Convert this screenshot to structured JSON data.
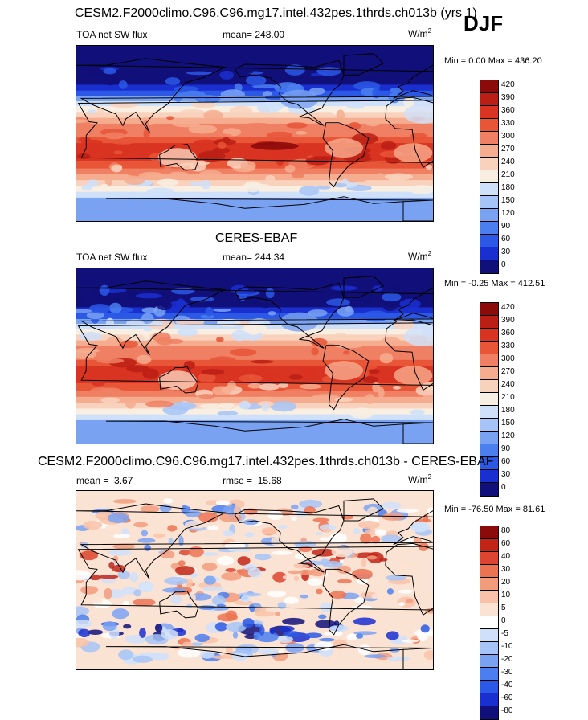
{
  "header": {
    "title": "CESM2.F2000climo.C96.C96.mg17.intel.432pes.1thrds.ch013b (yrs 1)",
    "season": "DJF"
  },
  "panels": [
    {
      "id": "test",
      "variable": "TOA net SW flux",
      "stat_label": "mean=",
      "stat_value": "248.00",
      "units": "W/m",
      "units_sup": "2",
      "range_text": "Min =   0.00 Max = 436.20",
      "levels": [
        "420",
        "390",
        "360",
        "330",
        "300",
        "270",
        "240",
        "210",
        "180",
        "150",
        "120",
        "90",
        "60",
        "30",
        "0"
      ]
    },
    {
      "id": "ref",
      "title": "CERES-EBAF",
      "variable": "TOA net SW flux",
      "stat_label": "mean=",
      "stat_value": "244.34",
      "units": "W/m",
      "units_sup": "2",
      "range_text": "Min =  -0.25 Max = 412.51",
      "levels": [
        "420",
        "390",
        "360",
        "330",
        "300",
        "270",
        "240",
        "210",
        "180",
        "150",
        "120",
        "90",
        "60",
        "30",
        "0"
      ]
    },
    {
      "id": "diff",
      "title": "CESM2.F2000climo.C96.C96.mg17.intel.432pes.1thrds.ch013b - CERES-EBAF",
      "stat_label": "mean =",
      "stat_value": "3.67",
      "rmse_label": "rmse =",
      "rmse_value": "15.68",
      "units": "W/m",
      "units_sup": "2",
      "range_text": "Min = -76.50 Max =  81.61",
      "levels": [
        "80",
        "60",
        "40",
        "30",
        "20",
        "10",
        "5",
        "0",
        "-5",
        "-10",
        "-20",
        "-30",
        "-40",
        "-60",
        "-80"
      ]
    }
  ],
  "chart_data": [
    {
      "type": "heatmap",
      "title": "CESM2.F2000climo.C96.C96.mg17.intel.432pes.1thrds.ch013b (yrs 1)",
      "subtitle": "TOA net SW flux",
      "season": "DJF",
      "mean": 248.0,
      "min": 0.0,
      "max": 436.2,
      "units": "W/m2",
      "colorbar_levels": [
        0,
        30,
        60,
        90,
        120,
        150,
        180,
        210,
        240,
        270,
        300,
        330,
        360,
        390,
        420
      ],
      "colorbar_colors": [
        "#110f79",
        "#1a2fd0",
        "#2c58e6",
        "#4b7ff0",
        "#7aa2f3",
        "#a6c4f7",
        "#cfe0fa",
        "#f8eee2",
        "#f9d2bd",
        "#f6ad8f",
        "#f08063",
        "#e85537",
        "#d93321",
        "#bb1e14",
        "#8b0a0a"
      ]
    },
    {
      "type": "heatmap",
      "title": "CERES-EBAF",
      "subtitle": "TOA net SW flux",
      "mean": 244.34,
      "min": -0.25,
      "max": 412.51,
      "units": "W/m2",
      "colorbar_levels": [
        0,
        30,
        60,
        90,
        120,
        150,
        180,
        210,
        240,
        270,
        300,
        330,
        360,
        390,
        420
      ],
      "colorbar_colors": [
        "#110f79",
        "#1a2fd0",
        "#2c58e6",
        "#4b7ff0",
        "#7aa2f3",
        "#a6c4f7",
        "#cfe0fa",
        "#f8eee2",
        "#f9d2bd",
        "#f6ad8f",
        "#f08063",
        "#e85537",
        "#d93321",
        "#bb1e14",
        "#8b0a0a"
      ]
    },
    {
      "type": "heatmap",
      "title": "CESM2.F2000climo.C96.C96.mg17.intel.432pes.1thrds.ch013b - CERES-EBAF",
      "mean": 3.67,
      "rmse": 15.68,
      "min": -76.5,
      "max": 81.61,
      "units": "W/m2",
      "colorbar_levels": [
        -80,
        -60,
        -40,
        -30,
        -20,
        -10,
        -5,
        0,
        5,
        10,
        20,
        30,
        40,
        60,
        80
      ],
      "colorbar_colors": [
        "#110f79",
        "#1a2fd0",
        "#2c58e6",
        "#4b7ff0",
        "#7aa2f3",
        "#a6c4f7",
        "#cfe0fa",
        "#ffffff",
        "#fbe3d4",
        "#f9c2a8",
        "#f39c7c",
        "#ec7352",
        "#dd4530",
        "#c22418",
        "#8b0a0a"
      ]
    }
  ]
}
